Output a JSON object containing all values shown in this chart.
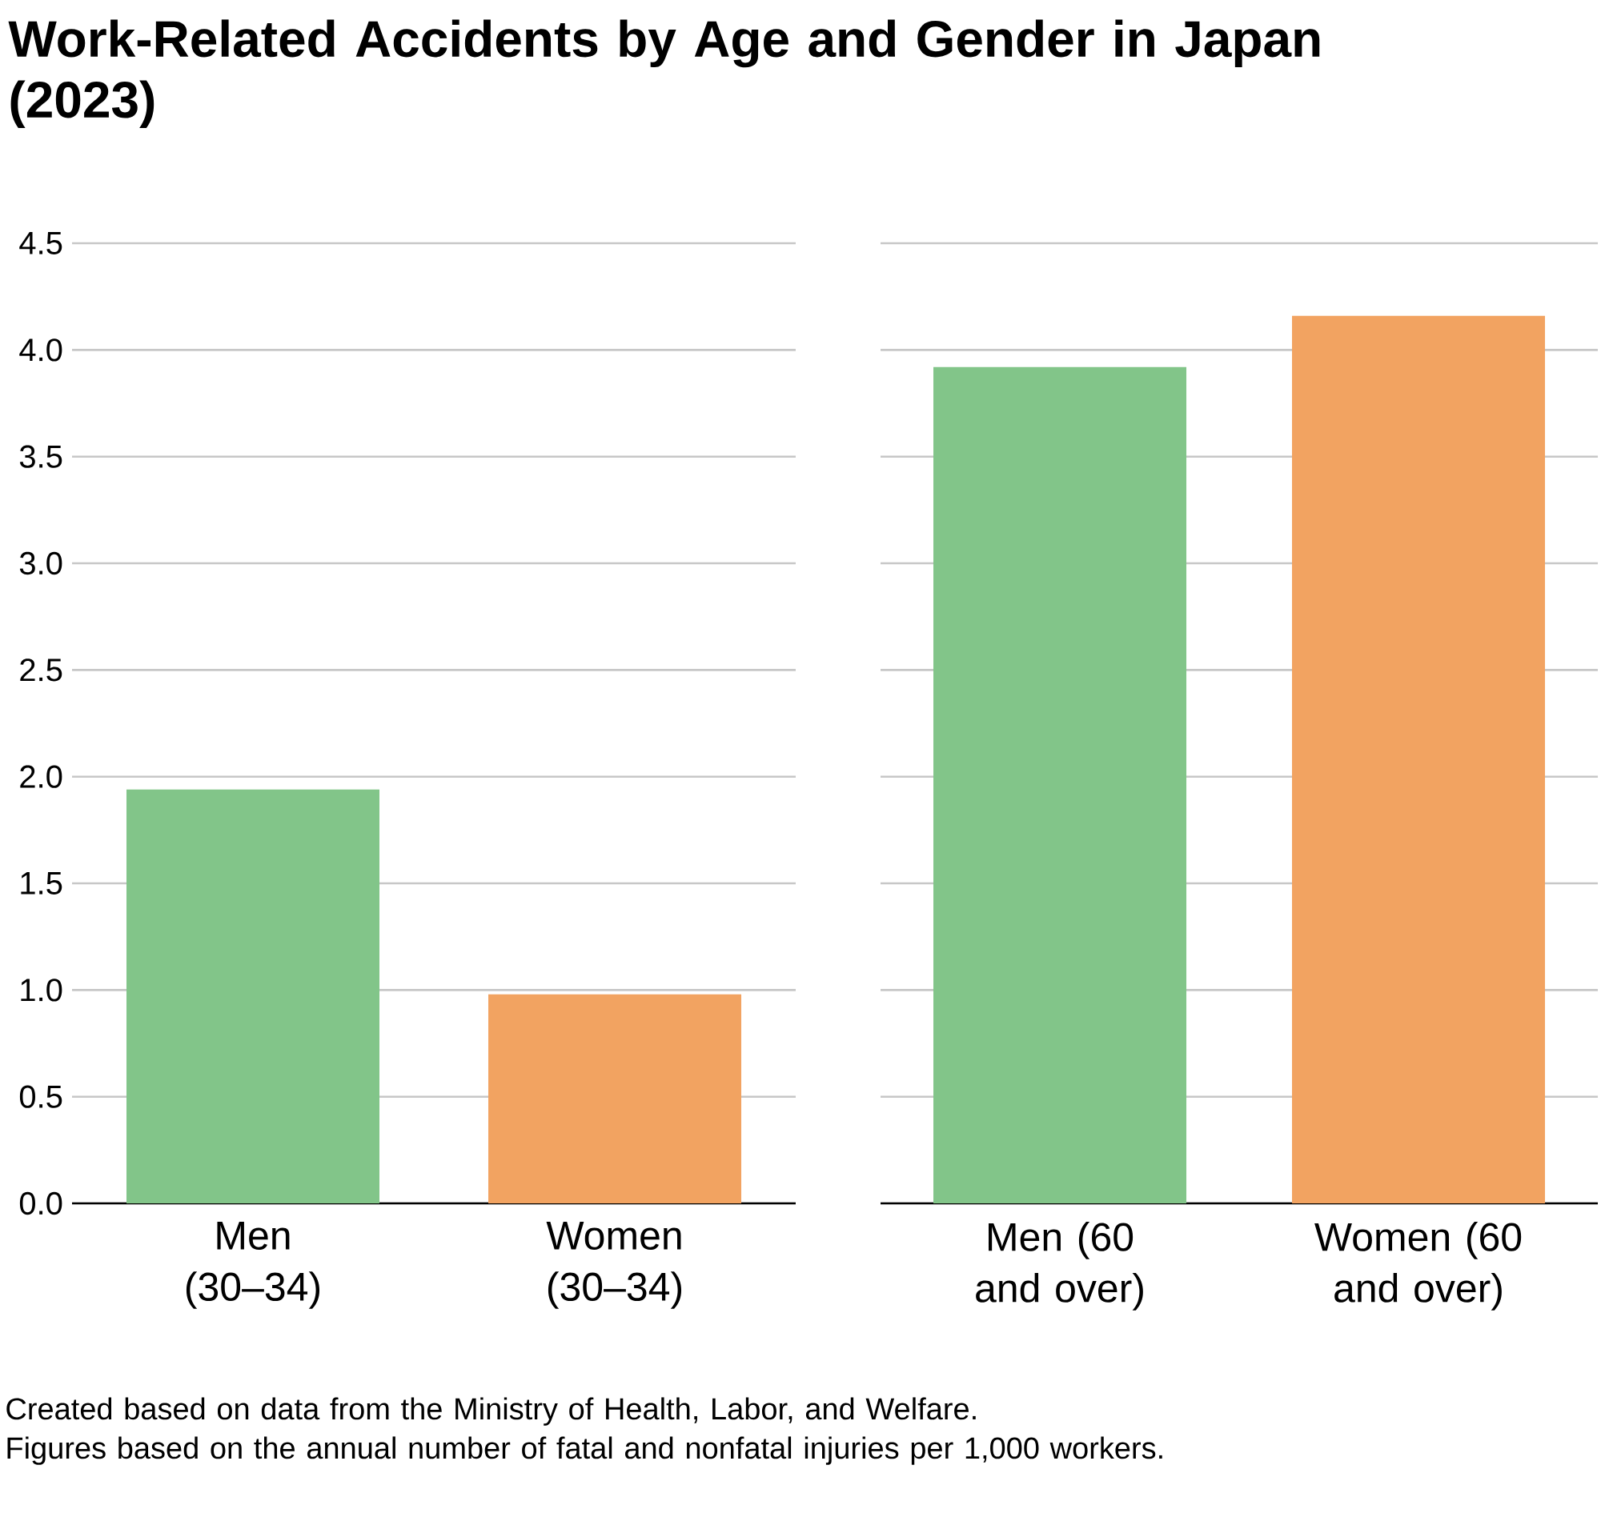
{
  "chart_data": [
    {
      "type": "bar",
      "title": "Work-Related Accidents by Age and Gender in Japan (2023)",
      "annotations": [
        "Created based on data from the Ministry of Health, Labor, and Welfare.",
        "Figures based on the annual number of fatal and nonfatal injuries per 1,000 workers."
      ],
      "categories": [
        "Men (30–34)",
        "Women (30–34)"
      ],
      "values": [
        1.94,
        0.98
      ],
      "colors": [
        "#82c589",
        "#f2a361"
      ],
      "ylim": [
        0,
        4.5
      ],
      "yticks": [
        {
          "value": 0,
          "label": "0.0"
        },
        {
          "value": 0.5,
          "label": "0.5"
        },
        {
          "value": 1,
          "label": "1.0"
        },
        {
          "value": 1.5,
          "label": "1.5"
        },
        {
          "value": 2,
          "label": "2.0"
        },
        {
          "value": 2.5,
          "label": "2.5"
        },
        {
          "value": 3,
          "label": "3.0"
        },
        {
          "value": 3.5,
          "label": "3.5"
        },
        {
          "value": 4,
          "label": "4.0"
        },
        {
          "value": 4.5,
          "label": "4.5"
        }
      ],
      "grid": "y"
    },
    {
      "type": "bar",
      "categories": [
        "Men (60 and over)",
        "Women (60 and over)"
      ],
      "values": [
        3.92,
        4.16
      ],
      "colors": [
        "#82c589",
        "#f2a361"
      ],
      "ylim": [
        0,
        4.5
      ],
      "yticks": [
        0,
        0.5,
        1,
        1.5,
        2,
        2.5,
        3,
        3.5,
        4,
        4.5
      ],
      "grid": "y",
      "tick_labels": "x"
    }
  ]
}
